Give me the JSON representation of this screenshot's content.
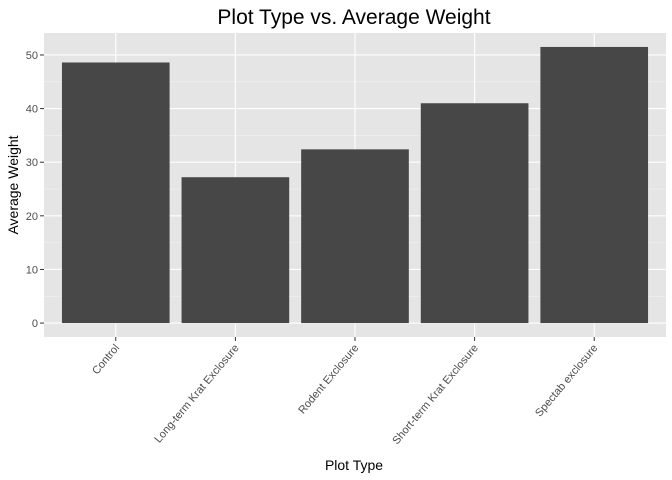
{
  "chart_data": {
    "type": "bar",
    "title": "Plot Type vs. Average Weight",
    "xlabel": "Plot Type",
    "ylabel": "Average Weight",
    "categories": [
      "Control",
      "Long-term Krat Exclosure",
      "Rodent Exclosure",
      "Short-term Krat Exclosure",
      "Spectab exclosure"
    ],
    "values": [
      48.6,
      27.2,
      32.4,
      41.0,
      51.5
    ],
    "yticks": [
      0,
      10,
      20,
      30,
      40,
      50
    ],
    "ylim": [
      -2.6,
      54.1
    ],
    "grid": true,
    "legend": "none",
    "colors": {
      "bar": "#474747",
      "panel_background": "#e5e5e5",
      "grid_major": "#ffffff",
      "grid_minor": "#f2f2f2",
      "tick_mark": "#333333",
      "tick_text": "#4d4d4d"
    }
  }
}
